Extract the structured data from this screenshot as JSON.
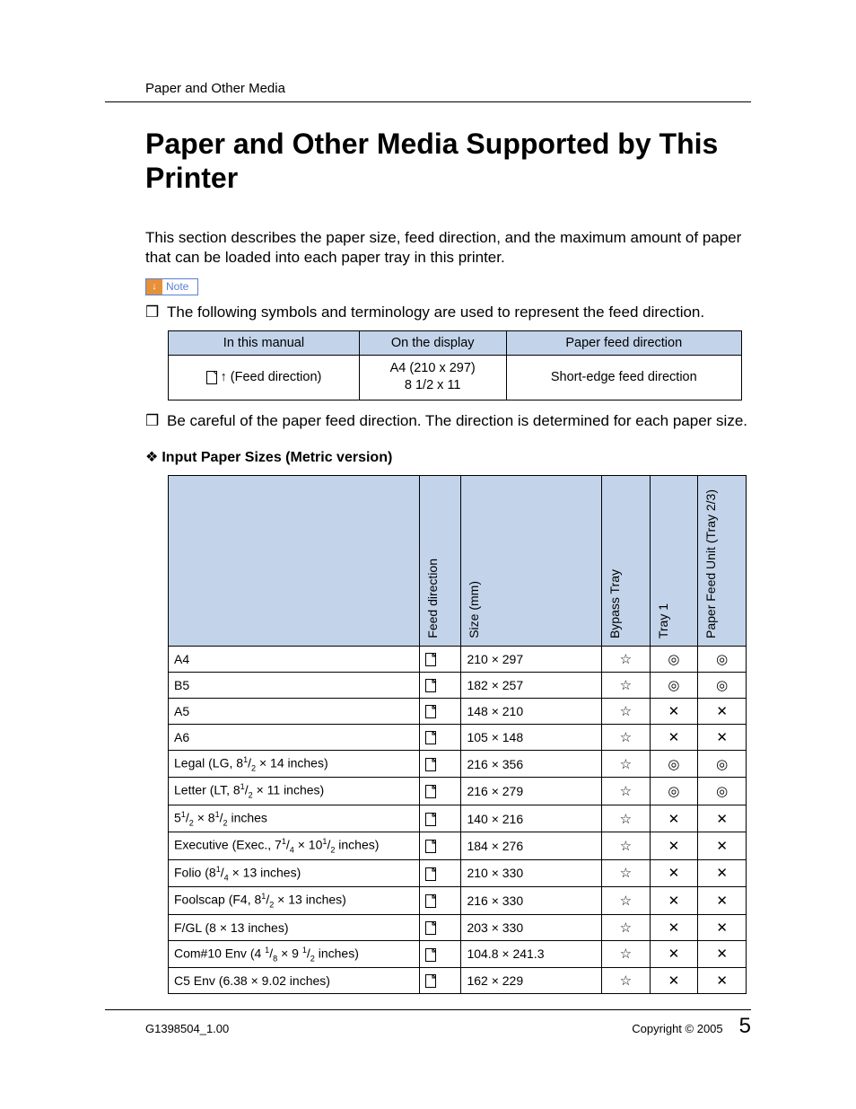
{
  "colors": {
    "header_bg": "#c3d3e9",
    "note_border": "#5a7fcf",
    "note_arrow_bg": "#e6903a",
    "text": "#000000",
    "page_bg": "#ffffff"
  },
  "symbols": {
    "star": "☆",
    "circle": "◎",
    "cross": "✕",
    "bullet": "❒",
    "diamond": "❖",
    "up_arrow": "↑",
    "down_arrow_note": "↓"
  },
  "header": {
    "running": "Paper and Other Media"
  },
  "title": "Paper and Other Media Supported by This Printer",
  "intro": "This section describes the paper size, feed direction, and the maximum amount of paper that can be loaded into each paper tray in this printer.",
  "note_label": "Note",
  "bullets": {
    "b1": "The following symbols and terminology are used to represent the feed direction.",
    "b2": "Be careful of the paper feed direction. The direction is determined for each paper size."
  },
  "small_table": {
    "headers": [
      "In this manual",
      "On the display",
      "Paper feed direction"
    ],
    "row": {
      "c1_suffix": " (Feed direction)",
      "c2_l1": "A4 (210 x 297)",
      "c2_l2": "8 1/2 x 11",
      "c3": "Short-edge feed direction"
    }
  },
  "section_heading": "Input Paper Sizes (Metric version)",
  "big_table": {
    "headers": {
      "feed": "Feed direction",
      "size": "Size (mm)",
      "bypass": "Bypass Tray",
      "tray1": "Tray 1",
      "pfu": "Paper Feed Unit (Tray 2/3)"
    },
    "rows": [
      {
        "name_html": "A4",
        "size": "210 × 297",
        "bypass": "star",
        "tray1": "circle",
        "pfu": "circle"
      },
      {
        "name_html": "B5",
        "size": "182 × 257",
        "bypass": "star",
        "tray1": "circle",
        "pfu": "circle"
      },
      {
        "name_html": "A5",
        "size": "148 × 210",
        "bypass": "star",
        "tray1": "cross",
        "pfu": "cross"
      },
      {
        "name_html": "A6",
        "size": "105 × 148",
        "bypass": "star",
        "tray1": "cross",
        "pfu": "cross"
      },
      {
        "name_html": "Legal (LG, 8<sup class='frac'>1</sup>/<sub class='frac'>2</sub> × 14 inches)",
        "size": "216 × 356",
        "bypass": "star",
        "tray1": "circle",
        "pfu": "circle"
      },
      {
        "name_html": "Letter (LT, 8<sup class='frac'>1</sup>/<sub class='frac'>2</sub> × 11 inches)",
        "size": "216 × 279",
        "bypass": "star",
        "tray1": "circle",
        "pfu": "circle"
      },
      {
        "name_html": "5<sup class='frac'>1</sup>/<sub class='frac'>2</sub> × 8<sup class='frac'>1</sup>/<sub class='frac'>2</sub> inches",
        "size": "140 × 216",
        "bypass": "star",
        "tray1": "cross",
        "pfu": "cross"
      },
      {
        "name_html": "Executive (Exec., 7<sup class='frac'>1</sup>/<sub class='frac'>4</sub> × 10<sup class='frac'>1</sup>/<sub class='frac'>2</sub> inches)",
        "size": "184 × 276",
        "bypass": "star",
        "tray1": "cross",
        "pfu": "cross"
      },
      {
        "name_html": "Folio (8<sup class='frac'>1</sup>/<sub class='frac'>4</sub> × 13 inches)",
        "size": "210 × 330",
        "bypass": "star",
        "tray1": "cross",
        "pfu": "cross"
      },
      {
        "name_html": "Foolscap (F4, 8<sup class='frac'>1</sup>/<sub class='frac'>2</sub> × 13 inches)",
        "size": "216 × 330",
        "bypass": "star",
        "tray1": "cross",
        "pfu": "cross"
      },
      {
        "name_html": "F/GL (8 × 13 inches)",
        "size": "203 × 330",
        "bypass": "star",
        "tray1": "cross",
        "pfu": "cross"
      },
      {
        "name_html": "Com#10 Env (4 <sup class='frac'>1</sup>/<sub class='frac'>8</sub> × 9 <sup class='frac'>1</sup>/<sub class='frac'>2</sub> inches)",
        "size": "104.8 × 241.3",
        "bypass": "star",
        "tray1": "cross",
        "pfu": "cross"
      },
      {
        "name_html": "C5 Env (6.38 × 9.02 inches)",
        "size": "162 × 229",
        "bypass": "star",
        "tray1": "cross",
        "pfu": "cross"
      }
    ]
  },
  "footer": {
    "docid": "G1398504_1.00",
    "copyright": "Copyright © 2005",
    "page": "5"
  }
}
